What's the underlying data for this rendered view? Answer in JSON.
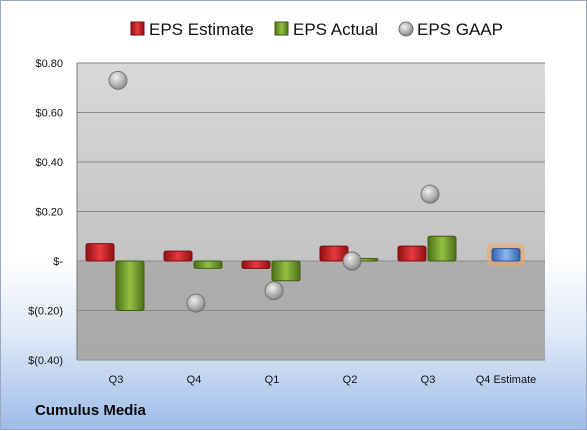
{
  "company": "Cumulus Media",
  "chart_data": {
    "type": "bar",
    "categories": [
      "Q3",
      "Q4",
      "Q1",
      "Q2",
      "Q3",
      "Q4 Estimate"
    ],
    "series": [
      {
        "name": "EPS Estimate",
        "kind": "bar",
        "color": "#c8161d",
        "values": [
          0.07,
          0.04,
          -0.03,
          0.06,
          0.06,
          null
        ]
      },
      {
        "name": "EPS Actual",
        "kind": "bar",
        "color": "#6e9a2a",
        "values": [
          -0.2,
          -0.03,
          -0.08,
          0.01,
          0.1,
          null
        ]
      },
      {
        "name": "EPS GAAP",
        "kind": "point",
        "color": "#a8a8a8",
        "values": [
          0.73,
          -0.17,
          -0.12,
          0.0,
          0.27,
          null
        ]
      },
      {
        "name": "",
        "kind": "bar",
        "color": "#4f86d6",
        "highlight": "#f5a65b",
        "values": [
          null,
          null,
          null,
          null,
          null,
          0.05
        ]
      }
    ],
    "ylim": [
      -0.4,
      0.8
    ],
    "yticks": [
      0.8,
      0.6,
      0.4,
      0.2,
      0,
      -0.2,
      -0.4
    ],
    "ytick_labels": [
      "$0.80",
      "$0.60",
      "$0.40",
      "$0.20",
      "$-",
      "$(0.20)",
      "$(0.40)"
    ],
    "grid": true,
    "legend": "top"
  }
}
